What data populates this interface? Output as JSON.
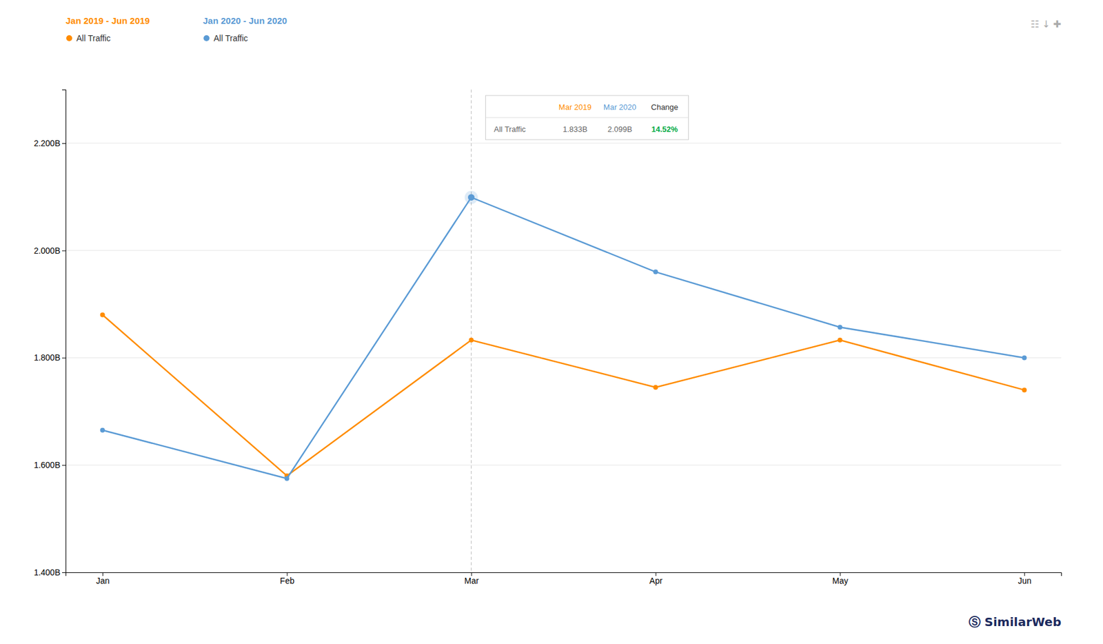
{
  "chart_data": {
    "type": "line",
    "categories": [
      "Jan",
      "Feb",
      "Mar",
      "Apr",
      "May",
      "Jun"
    ],
    "series": [
      {
        "name": "Jan 2019 - Jun 2019",
        "color": "#FF8C00",
        "values": [
          1.88,
          1.58,
          1.833,
          1.745,
          1.833,
          1.74
        ]
      },
      {
        "name": "Jan 2020 - Jun 2020",
        "color": "#5B9BD5",
        "values": [
          1.665,
          1.575,
          2.099,
          1.96,
          1.857,
          1.8
        ]
      }
    ],
    "ylim": [
      1.4,
      2.3
    ],
    "yticks": [
      {
        "value": 1.4,
        "label": "1.400B"
      },
      {
        "value": 1.6,
        "label": "1.600B"
      },
      {
        "value": 1.8,
        "label": "1.800B"
      },
      {
        "value": 2.0,
        "label": "2.000B"
      },
      {
        "value": 2.2,
        "label": "2.200B"
      }
    ],
    "grid": true,
    "marker": "circle",
    "annotations": [
      {
        "text": "All Traffic",
        "series": 0
      },
      {
        "text": "All Traffic",
        "series": 1
      },
      {
        "category": "Mar",
        "header": [
          "Mar 2019",
          "Mar 2020",
          "Change"
        ],
        "row": [
          "All Traffic",
          "1.833B",
          "2.099B",
          "14.52%"
        ],
        "color": "#00AA44"
      },
      {
        "text": "☷  ↓  ✚"
      },
      {
        "text": "Ⓢ SimilarWeb"
      }
    ]
  }
}
